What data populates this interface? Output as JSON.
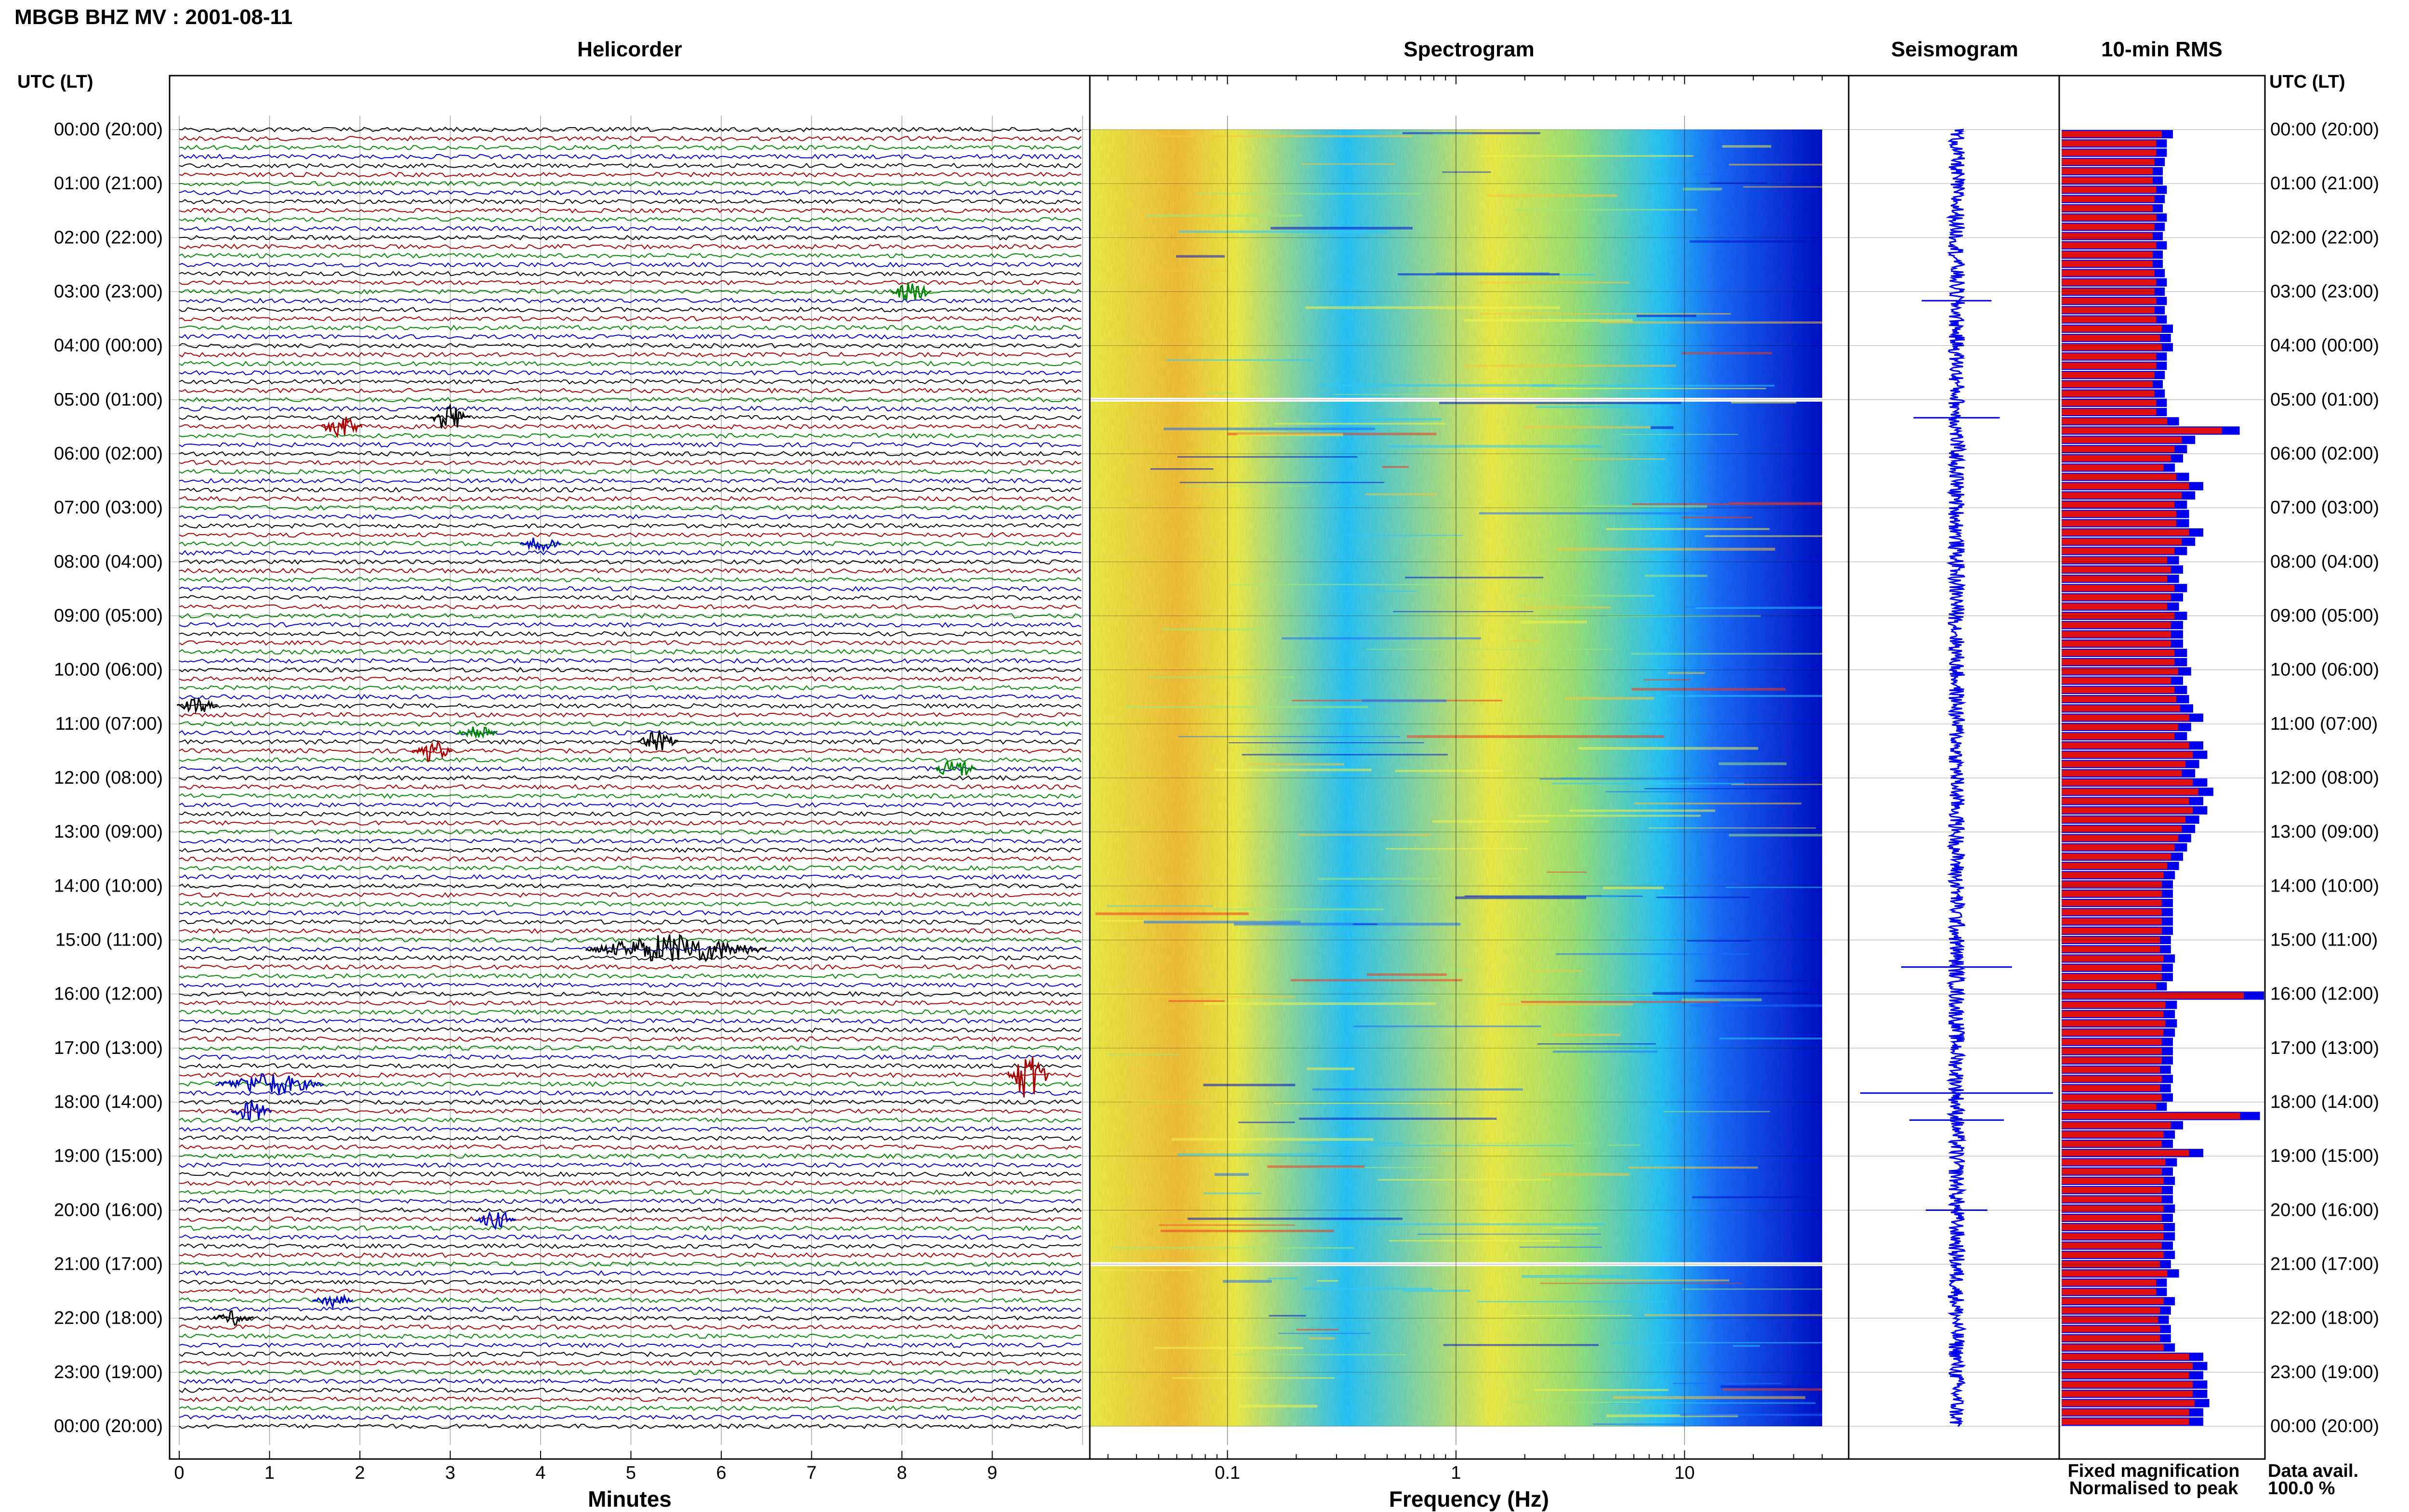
{
  "header": {
    "station_title": "MBGB BHZ MV : 2001-08-11"
  },
  "chart_data": [
    {
      "type": "helicorder",
      "title": "Helicorder",
      "xlabel": "Minutes",
      "x_ticks": [
        "0",
        "1",
        "2",
        "3",
        "4",
        "5",
        "6",
        "7",
        "8",
        "9"
      ],
      "xlim": [
        0,
        10
      ],
      "y_left_header": "UTC (LT)",
      "y_right_header": "UTC (LT)",
      "y_ticks": [
        "00:00 (20:00)",
        "01:00 (21:00)",
        "02:00 (22:00)",
        "03:00 (23:00)",
        "04:00 (00:00)",
        "05:00 (01:00)",
        "06:00 (02:00)",
        "07:00 (03:00)",
        "08:00 (04:00)",
        "09:00 (05:00)",
        "10:00 (06:00)",
        "11:00 (07:00)",
        "12:00 (08:00)",
        "13:00 (09:00)",
        "14:00 (10:00)",
        "15:00 (11:00)",
        "16:00 (12:00)",
        "17:00 (13:00)",
        "18:00 (14:00)",
        "19:00 (15:00)",
        "20:00 (16:00)",
        "21:00 (17:00)",
        "22:00 (18:00)",
        "23:00 (19:00)",
        "00:00 (20:00)"
      ],
      "trace_colors": [
        "#000000",
        "#aa0000",
        "#008800",
        "#0000cc"
      ],
      "events": [
        {
          "time": "03:00",
          "minute": 8.1,
          "amp": 3,
          "color": "#008800"
        },
        {
          "time": "05:20",
          "minute": 3.0,
          "amp": 4,
          "color": "#000000"
        },
        {
          "time": "05:30",
          "minute": 1.8,
          "amp": 3,
          "color": "#aa0000"
        },
        {
          "time": "07:40",
          "minute": 4.0,
          "amp": 2,
          "color": "#0000cc"
        },
        {
          "time": "10:40",
          "minute": 0.2,
          "amp": 2,
          "color": "#000000"
        },
        {
          "time": "11:10",
          "minute": 3.3,
          "amp": 2.5,
          "color": "#008800"
        },
        {
          "time": "11:20",
          "minute": 5.3,
          "amp": 3,
          "color": "#000000"
        },
        {
          "time": "11:30",
          "minute": 2.8,
          "amp": 3,
          "color": "#aa0000"
        },
        {
          "time": "11:50",
          "minute": 8.6,
          "amp": 3,
          "color": "#008800"
        },
        {
          "time": "15:10",
          "minute": 5.5,
          "amp": 4,
          "color": "#000000",
          "width": 2.0
        },
        {
          "time": "17:30",
          "minute": 9.4,
          "amp": 7,
          "color": "#aa0000"
        },
        {
          "time": "17:40",
          "minute": 1.0,
          "amp": 3,
          "color": "#0000cc",
          "width": 1.2
        },
        {
          "time": "18:10",
          "minute": 0.8,
          "amp": 3,
          "color": "#0000cc"
        },
        {
          "time": "20:10",
          "minute": 3.5,
          "amp": 2.5,
          "color": "#0000cc"
        },
        {
          "time": "21:40",
          "minute": 1.7,
          "amp": 2,
          "color": "#0000cc"
        },
        {
          "time": "22:00",
          "minute": 0.6,
          "amp": 2,
          "color": "#000000"
        }
      ]
    },
    {
      "type": "heatmap",
      "title": "Spectrogram",
      "xlabel": "Frequency (Hz)",
      "x_scale": "log",
      "xlim": [
        0.025,
        40
      ],
      "x_ticks": [
        "0.1",
        "1",
        "10"
      ],
      "colormap": [
        "#0010cc",
        "#1a6cff",
        "#29c8ff",
        "#9fe87a",
        "#f2f24a",
        "#f7c43a",
        "#ee3a1e"
      ],
      "data_gaps": [
        "05:00",
        "21:00"
      ]
    },
    {
      "type": "line",
      "title": "Seismogram",
      "legend": "Fixed magnification",
      "legend_color": "#0000ee",
      "color": "#0000ee",
      "spikes": [
        {
          "time": "03:10",
          "amp": 0.25
        },
        {
          "time": "05:20",
          "amp": 0.35
        },
        {
          "time": "15:30",
          "amp": 0.5
        },
        {
          "time": "17:50",
          "amp": 1.0
        },
        {
          "time": "18:20",
          "amp": 0.4
        },
        {
          "time": "20:00",
          "amp": 0.2
        }
      ]
    },
    {
      "type": "bar",
      "title": "10-min RMS",
      "orientation": "horizontal",
      "series": [
        {
          "name": "Fixed magnification",
          "color": "#0000ee"
        },
        {
          "name": "Normalised to peak",
          "color": "#e01010"
        }
      ],
      "values": [
        0.55,
        0.52,
        0.52,
        0.51,
        0.5,
        0.5,
        0.52,
        0.51,
        0.5,
        0.52,
        0.51,
        0.5,
        0.52,
        0.5,
        0.5,
        0.51,
        0.52,
        0.51,
        0.52,
        0.51,
        0.52,
        0.55,
        0.54,
        0.55,
        0.52,
        0.52,
        0.51,
        0.5,
        0.51,
        0.52,
        0.52,
        0.58,
        0.88,
        0.66,
        0.62,
        0.6,
        0.56,
        0.63,
        0.7,
        0.66,
        0.62,
        0.63,
        0.63,
        0.7,
        0.66,
        0.62,
        0.58,
        0.6,
        0.58,
        0.62,
        0.6,
        0.58,
        0.62,
        0.6,
        0.6,
        0.6,
        0.62,
        0.62,
        0.64,
        0.6,
        0.62,
        0.63,
        0.65,
        0.7,
        0.64,
        0.62,
        0.7,
        0.72,
        0.68,
        0.66,
        0.72,
        0.75,
        0.7,
        0.72,
        0.68,
        0.66,
        0.64,
        0.62,
        0.6,
        0.58,
        0.56,
        0.55,
        0.55,
        0.55,
        0.55,
        0.55,
        0.55,
        0.54,
        0.54,
        0.56,
        0.55,
        0.55,
        0.52,
        1.0,
        0.57,
        0.56,
        0.57,
        0.56,
        0.55,
        0.55,
        0.55,
        0.54,
        0.55,
        0.54,
        0.55,
        0.52,
        0.98,
        0.6,
        0.56,
        0.55,
        0.7,
        0.57,
        0.55,
        0.56,
        0.55,
        0.55,
        0.56,
        0.55,
        0.56,
        0.56,
        0.55,
        0.56,
        0.54,
        0.58,
        0.52,
        0.52,
        0.56,
        0.54,
        0.53,
        0.54,
        0.54,
        0.56,
        0.7,
        0.72,
        0.7,
        0.72,
        0.72,
        0.73,
        0.7,
        0.7
      ],
      "xlim": [
        0,
        1
      ],
      "footer_label": "Data avail.",
      "footer_value": "100.0 %"
    }
  ]
}
